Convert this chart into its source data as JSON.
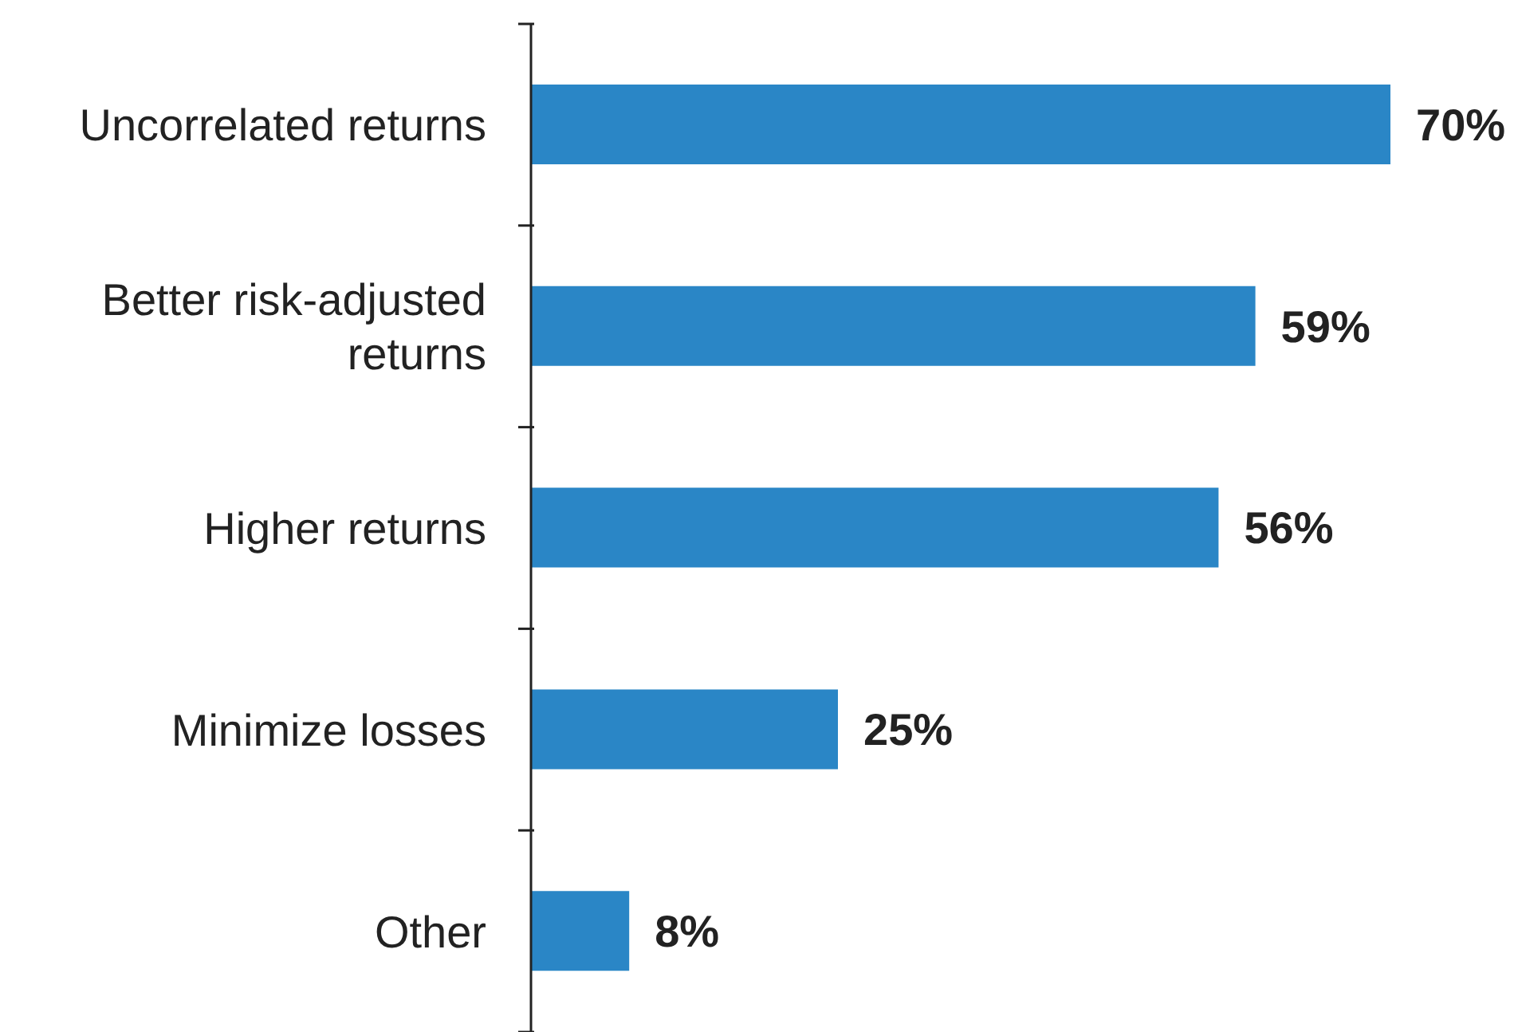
{
  "chart_data": {
    "type": "bar",
    "orientation": "horizontal",
    "categories": [
      "Uncorrelated returns",
      "Better risk-adjusted returns",
      "Higher returns",
      "Minimize losses",
      "Other"
    ],
    "values": [
      70,
      59,
      56,
      25,
      8
    ],
    "value_labels": [
      "70%",
      "59%",
      "56%",
      "25%",
      "8%"
    ],
    "color": "#2a86c6",
    "grid": false,
    "legend": false
  }
}
